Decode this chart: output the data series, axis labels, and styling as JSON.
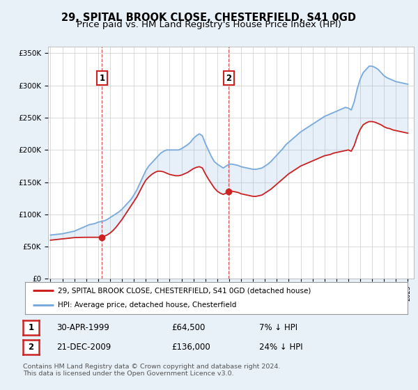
{
  "title": "29, SPITAL BROOK CLOSE, CHESTERFIELD, S41 0GD",
  "subtitle": "Price paid vs. HM Land Registry's House Price Index (HPI)",
  "legend_line1": "29, SPITAL BROOK CLOSE, CHESTERFIELD, S41 0GD (detached house)",
  "legend_line2": "HPI: Average price, detached house, Chesterfield",
  "footnote": "Contains HM Land Registry data © Crown copyright and database right 2024.\nThis data is licensed under the Open Government Licence v3.0.",
  "sale1_label": "1",
  "sale1_date": "30-APR-1999",
  "sale1_price": "£64,500",
  "sale1_hpi": "7% ↓ HPI",
  "sale1_year": 1999.33,
  "sale1_value": 64500,
  "sale2_label": "2",
  "sale2_date": "21-DEC-2009",
  "sale2_price": "£136,000",
  "sale2_hpi": "24% ↓ HPI",
  "sale2_year": 2009.97,
  "sale2_value": 136000,
  "hpi_color": "#7aabdc",
  "property_color": "#cc2222",
  "sale_marker_color": "#cc2222",
  "background_color": "#e8f0f8",
  "plot_bg_color": "#ffffff",
  "grid_color": "#cccccc",
  "ylim": [
    0,
    360000
  ],
  "xlim": [
    1994.8,
    2025.5
  ],
  "title_fontsize": 10.5,
  "subtitle_fontsize": 9.5,
  "years_hpi": [
    1995,
    1995.25,
    1995.5,
    1995.75,
    1996,
    1996.25,
    1996.5,
    1996.75,
    1997,
    1997.25,
    1997.5,
    1997.75,
    1998,
    1998.25,
    1998.5,
    1998.75,
    1999,
    1999.25,
    1999.5,
    1999.75,
    2000,
    2000.25,
    2000.5,
    2000.75,
    2001,
    2001.25,
    2001.5,
    2001.75,
    2002,
    2002.25,
    2002.5,
    2002.75,
    2003,
    2003.25,
    2003.5,
    2003.75,
    2004,
    2004.25,
    2004.5,
    2004.75,
    2005,
    2005.25,
    2005.5,
    2005.75,
    2006,
    2006.25,
    2006.5,
    2006.75,
    2007,
    2007.25,
    2007.5,
    2007.75,
    2008,
    2008.25,
    2008.5,
    2008.75,
    2009,
    2009.25,
    2009.5,
    2009.75,
    2010,
    2010.25,
    2010.5,
    2010.75,
    2011,
    2011.25,
    2011.5,
    2011.75,
    2012,
    2012.25,
    2012.5,
    2012.75,
    2013,
    2013.25,
    2013.5,
    2013.75,
    2014,
    2014.25,
    2014.5,
    2014.75,
    2015,
    2015.25,
    2015.5,
    2015.75,
    2016,
    2016.25,
    2016.5,
    2016.75,
    2017,
    2017.25,
    2017.5,
    2017.75,
    2018,
    2018.25,
    2018.5,
    2018.75,
    2019,
    2019.25,
    2019.5,
    2019.75,
    2020,
    2020.25,
    2020.5,
    2020.75,
    2021,
    2021.25,
    2021.5,
    2021.75,
    2022,
    2022.25,
    2022.5,
    2022.75,
    2023,
    2023.25,
    2023.5,
    2023.75,
    2024,
    2024.25,
    2024.5,
    2024.75,
    2025
  ],
  "hpi_values": [
    68000,
    68500,
    69000,
    69500,
    70000,
    71000,
    72000,
    73000,
    74000,
    76000,
    78000,
    80000,
    82000,
    84000,
    85000,
    86000,
    88000,
    89000,
    90000,
    92000,
    95000,
    98000,
    101000,
    104000,
    108000,
    113000,
    118000,
    123000,
    130000,
    138000,
    148000,
    158000,
    168000,
    175000,
    180000,
    185000,
    190000,
    195000,
    198000,
    200000,
    200000,
    200000,
    200000,
    200000,
    202000,
    205000,
    208000,
    212000,
    218000,
    222000,
    225000,
    222000,
    210000,
    200000,
    190000,
    182000,
    178000,
    175000,
    172000,
    175000,
    178000,
    178000,
    177000,
    176000,
    174000,
    173000,
    172000,
    171000,
    170000,
    170000,
    171000,
    172000,
    175000,
    178000,
    182000,
    187000,
    192000,
    197000,
    202000,
    208000,
    212000,
    216000,
    220000,
    224000,
    228000,
    231000,
    234000,
    237000,
    240000,
    243000,
    246000,
    249000,
    252000,
    254000,
    256000,
    258000,
    260000,
    262000,
    264000,
    266000,
    265000,
    262000,
    275000,
    295000,
    310000,
    320000,
    325000,
    330000,
    330000,
    328000,
    325000,
    320000,
    315000,
    312000,
    310000,
    308000,
    306000,
    305000,
    304000,
    303000,
    302000
  ],
  "prop_values": [
    60000,
    60500,
    61000,
    61500,
    62000,
    62500,
    63000,
    63500,
    64000,
    64200,
    64300,
    64400,
    64500,
    64500,
    64500,
    64500,
    64500,
    65000,
    66000,
    68000,
    71000,
    75000,
    80000,
    86000,
    92000,
    99000,
    106000,
    113000,
    120000,
    127000,
    136000,
    145000,
    153000,
    158000,
    162000,
    165000,
    167000,
    167000,
    166000,
    164000,
    162000,
    161000,
    160000,
    160000,
    161000,
    163000,
    165000,
    168000,
    171000,
    173000,
    174000,
    172000,
    163000,
    155000,
    148000,
    141000,
    136000,
    133000,
    131000,
    133000,
    136000,
    136000,
    135000,
    134000,
    132000,
    131000,
    130000,
    129000,
    128000,
    128000,
    129000,
    130000,
    133000,
    136000,
    139000,
    143000,
    147000,
    151000,
    155000,
    159000,
    163000,
    166000,
    169000,
    172000,
    175000,
    177000,
    179000,
    181000,
    183000,
    185000,
    187000,
    189000,
    191000,
    192000,
    193000,
    195000,
    196000,
    197000,
    198000,
    199000,
    200000,
    198000,
    207000,
    221000,
    232000,
    239000,
    242000,
    244000,
    244000,
    243000,
    241000,
    239000,
    236000,
    234000,
    233000,
    231000,
    230000,
    229000,
    228000,
    227000,
    226000
  ]
}
